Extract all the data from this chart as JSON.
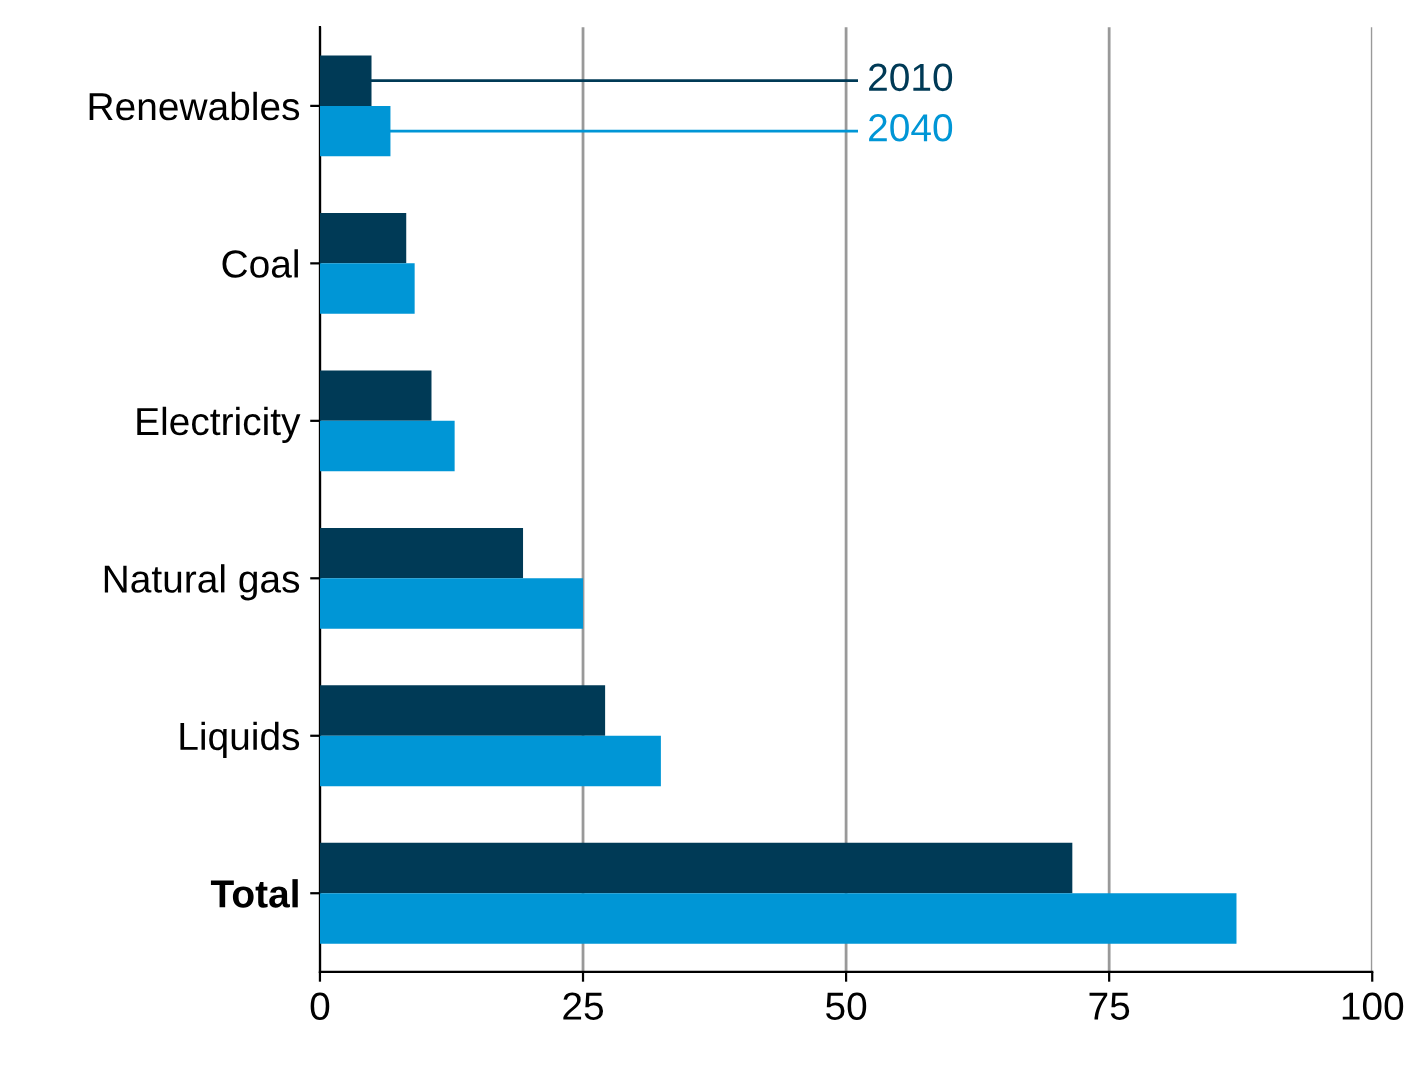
{
  "chart_data": {
    "type": "bar",
    "orientation": "horizontal",
    "categories": [
      "Renewables",
      "Coal",
      "Electricity",
      "Natural gas",
      "Liquids",
      "Total"
    ],
    "series": [
      {
        "name": "2010",
        "color": "#003a56",
        "values": [
          4.9,
          8.2,
          10.6,
          19.3,
          27.1,
          71.5
        ]
      },
      {
        "name": "2040",
        "color": "#0096d6",
        "values": [
          6.7,
          9.0,
          12.8,
          25.0,
          32.4,
          87.1
        ]
      }
    ],
    "xlim": [
      0,
      100
    ],
    "xticks": [
      0,
      25,
      50,
      75,
      100
    ],
    "grid": "x"
  }
}
